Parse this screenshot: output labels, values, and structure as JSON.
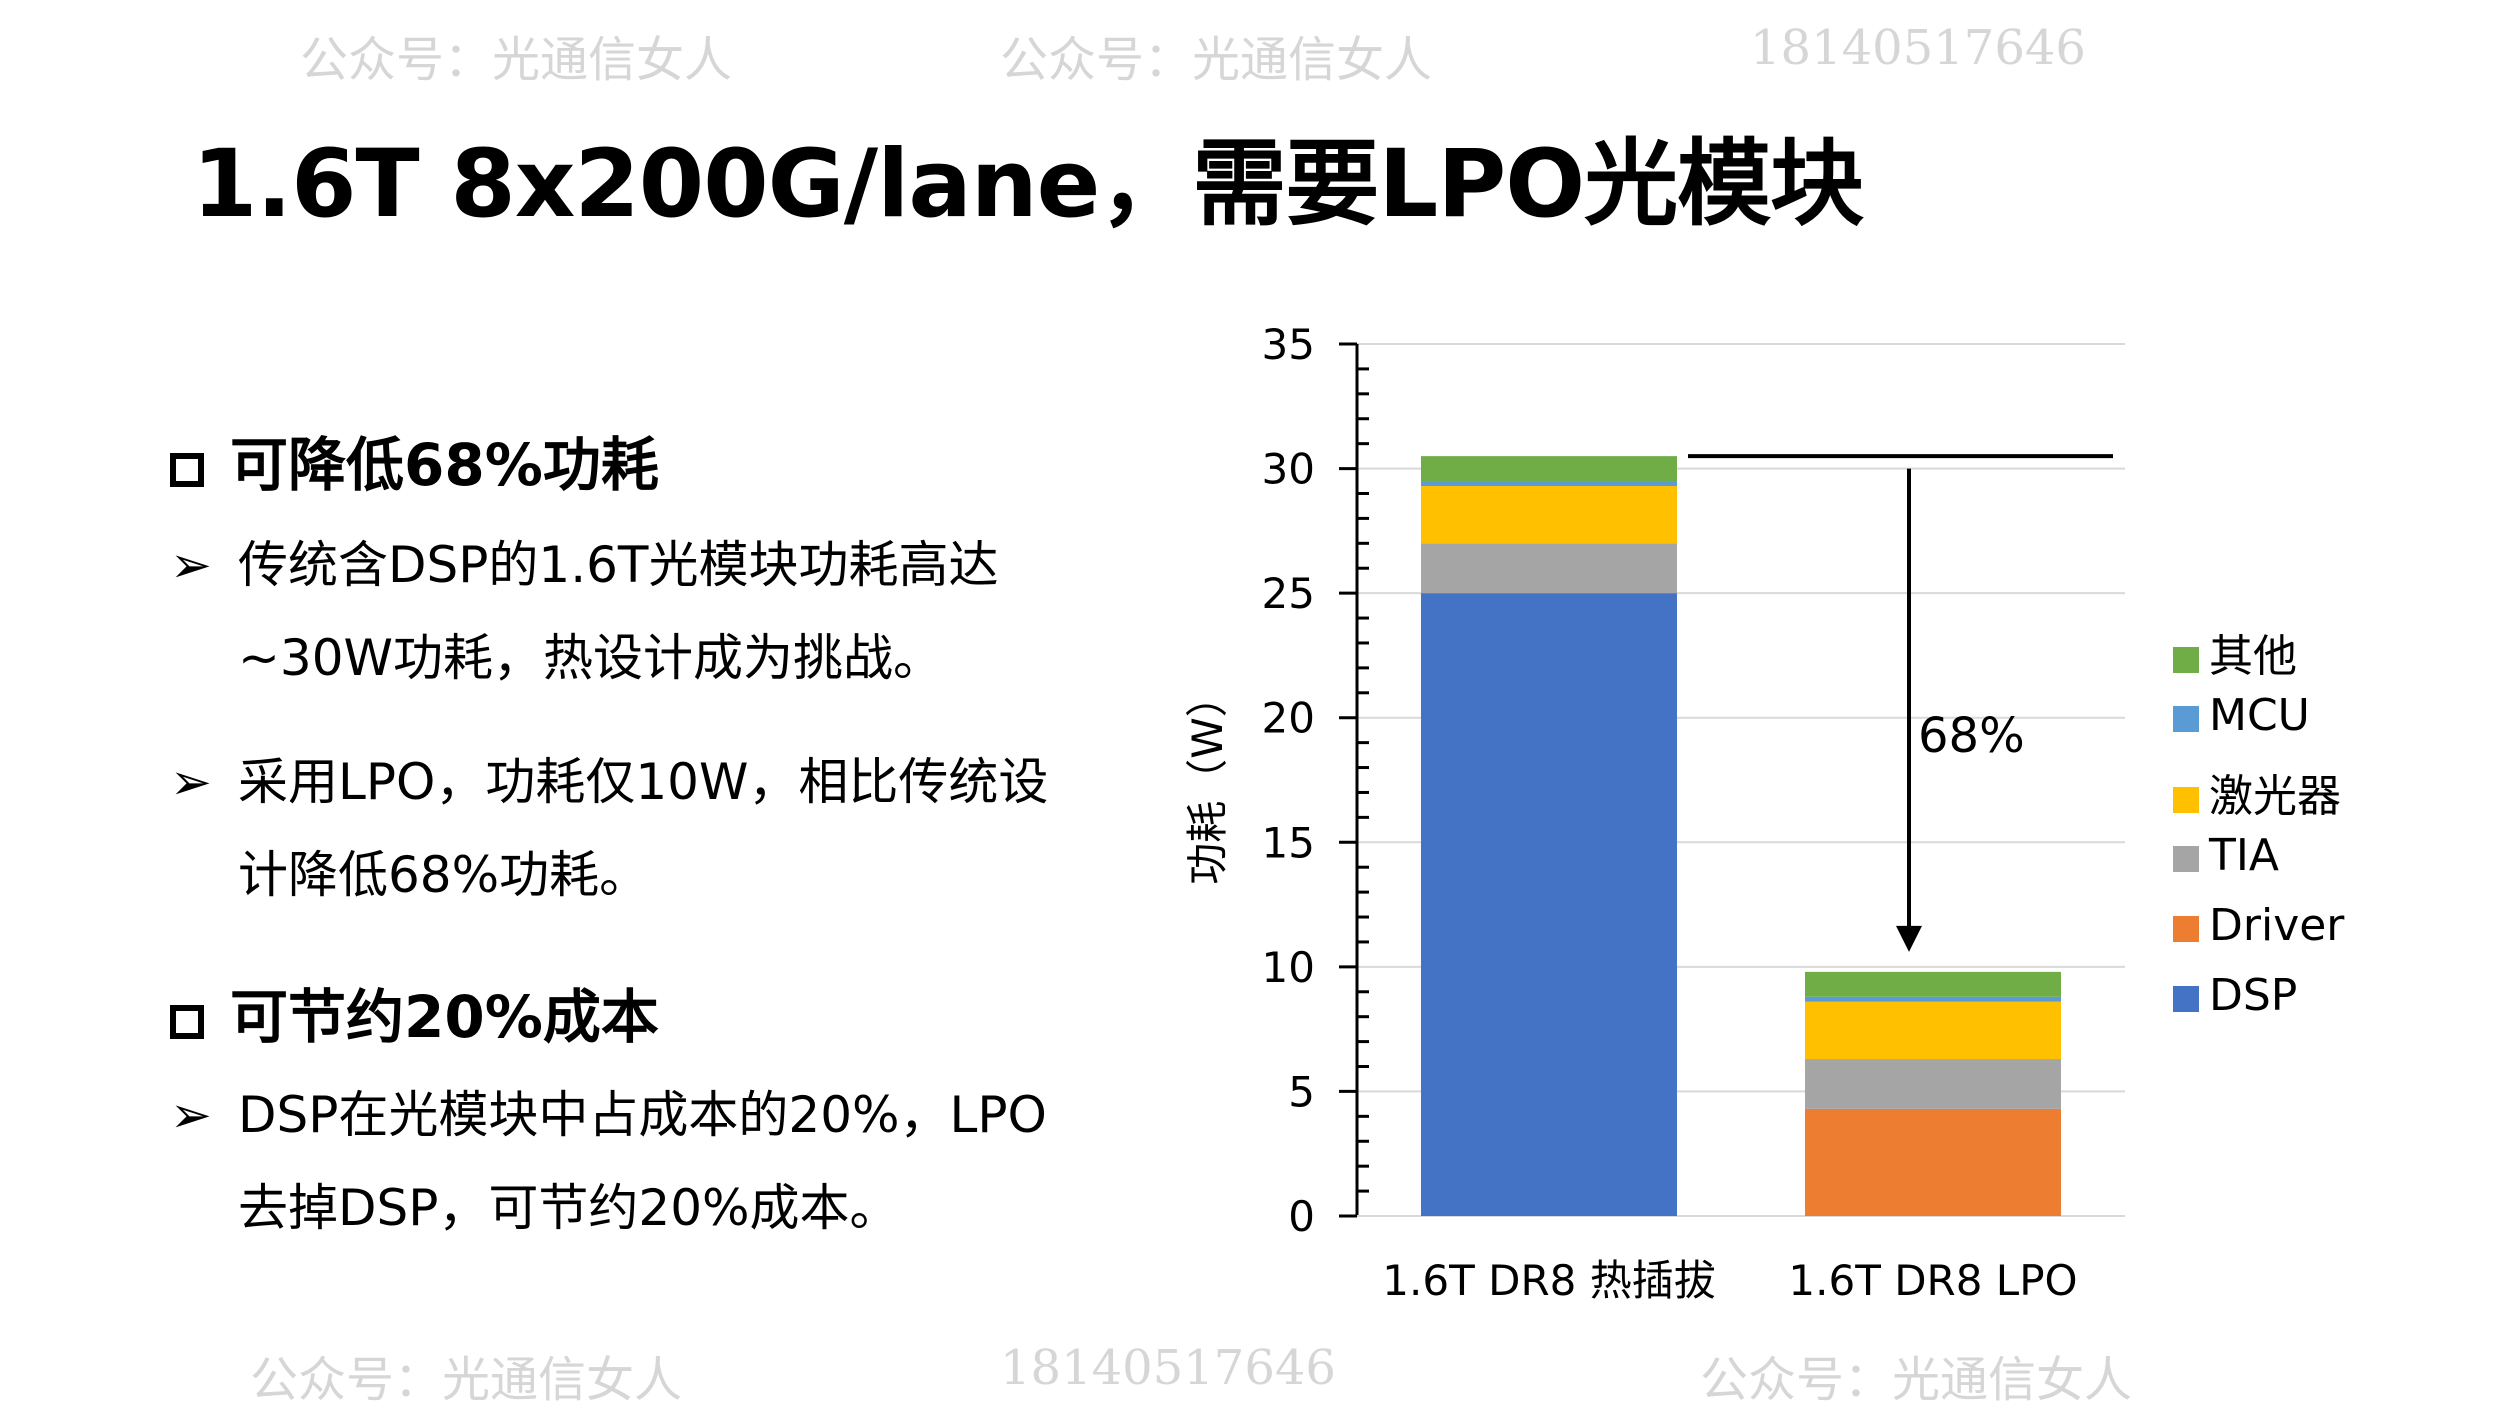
{
  "title": "1.6T 8x200G/lane，需要LPO光模块",
  "sections": [
    {
      "heading": "可降低68%功耗",
      "bullets": [
        [
          "传统含DSP的1.6T光模块功耗高达",
          "~30W功耗，热设计成为挑战。"
        ],
        [
          "采用LPO，功耗仅10W，相比传统设",
          "计降低68%功耗。"
        ]
      ]
    },
    {
      "heading": "可节约20%成本",
      "bullets": [
        [
          "DSP在光模块中占成本的20%，LPO",
          "去掉DSP，可节约20%成本。"
        ]
      ]
    }
  ],
  "watermarks": {
    "account": "公众号：光通信女人",
    "phone": "18140517646"
  },
  "chart_data": {
    "type": "bar",
    "stacked": true,
    "categories": [
      "1.6T DR8 热插拔",
      "1.6T DR8 LPO"
    ],
    "ylabel": "功耗（W）",
    "ylim": [
      0,
      35
    ],
    "yticks": [
      0,
      5,
      10,
      15,
      20,
      25,
      30,
      35
    ],
    "series": [
      {
        "name": "DSP",
        "color": "#4472C4",
        "values": [
          25,
          0
        ]
      },
      {
        "name": "Driver",
        "color": "#ED7D31",
        "values": [
          0,
          4.3
        ]
      },
      {
        "name": "TIA",
        "color": "#A5A5A5",
        "values": [
          2,
          2
        ]
      },
      {
        "name": "激光器",
        "color": "#FFC000",
        "values": [
          2.3,
          2.3
        ]
      },
      {
        "name": "MCU",
        "color": "#5B9BD5",
        "values": [
          0.2,
          0.2
        ]
      },
      {
        "name": "其他",
        "color": "#70AD47",
        "values": [
          1,
          1
        ]
      }
    ],
    "annotation": "68%",
    "legend": "right"
  }
}
